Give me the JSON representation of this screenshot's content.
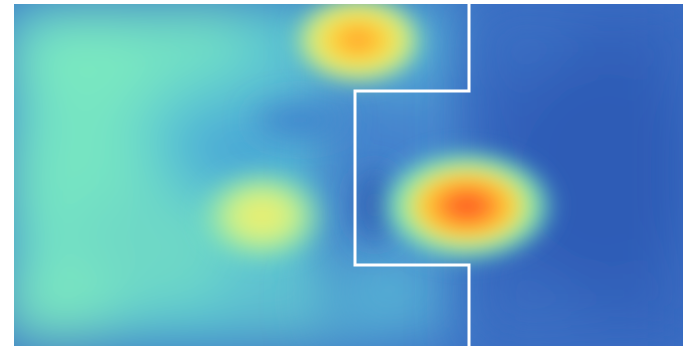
{
  "figure": {
    "kind": "heatmap-with-region-outline",
    "colormap": [
      "#2f5fb6",
      "#3f8fd0",
      "#5fd0c8",
      "#86f0b2",
      "#e7f06a",
      "#ffb23a",
      "#ff5a2a"
    ],
    "outline_color": "#ffffff",
    "hotspots": [
      {
        "label": "top-hotspot",
        "intensity": 0.78
      },
      {
        "label": "right-hotspot",
        "intensity": 0.92
      },
      {
        "label": "left-mid-hotspot",
        "intensity": 0.62
      }
    ]
  }
}
